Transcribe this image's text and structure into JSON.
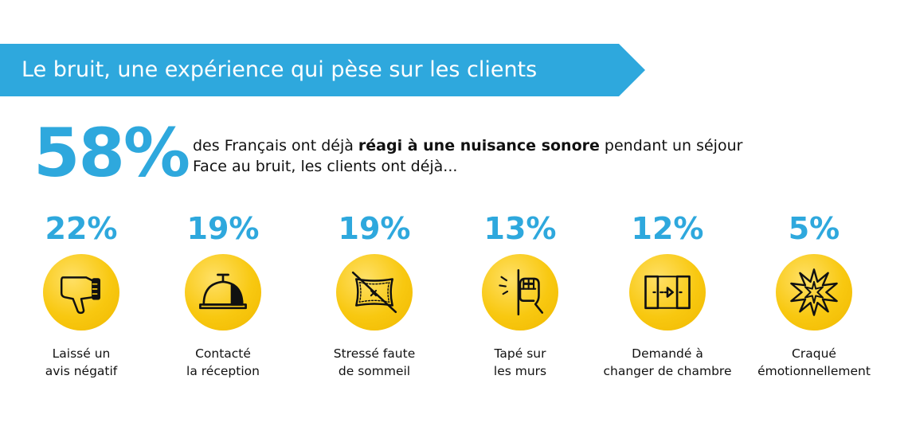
{
  "banner": {
    "title": "Le bruit, une expérience qui pèse sur les clients"
  },
  "headline": {
    "percent": "58%",
    "line1_pre": "des Français ont déjà ",
    "line1_bold": "réagi à une nuisance sonore",
    "line1_post": " pendant un séjour",
    "line2": "Face au bruit, les clients ont déjà..."
  },
  "stats": [
    {
      "percent": "22%",
      "icon": "thumbs-down-icon",
      "label_line1": "Laissé un",
      "label_line2": "avis négatif"
    },
    {
      "percent": "19%",
      "icon": "reception-bell-icon",
      "label_line1": "Contacté",
      "label_line2": "la réception"
    },
    {
      "percent": "19%",
      "icon": "crossed-pillow-icon",
      "label_line1": "Stressé faute",
      "label_line2": "de sommeil"
    },
    {
      "percent": "13%",
      "icon": "fist-knocking-wall-icon",
      "label_line1": "Tapé sur",
      "label_line2": "les murs"
    },
    {
      "percent": "12%",
      "icon": "change-room-doors-icon",
      "label_line1": "Demandé à",
      "label_line2": "changer de chambre"
    },
    {
      "percent": "5%",
      "icon": "burst-icon",
      "label_line1": "Craqué",
      "label_line2": "émotionnellement"
    }
  ],
  "colors": {
    "accent_blue": "#2ea8dd",
    "icon_yellow": "#f8c810",
    "text": "#111111"
  }
}
